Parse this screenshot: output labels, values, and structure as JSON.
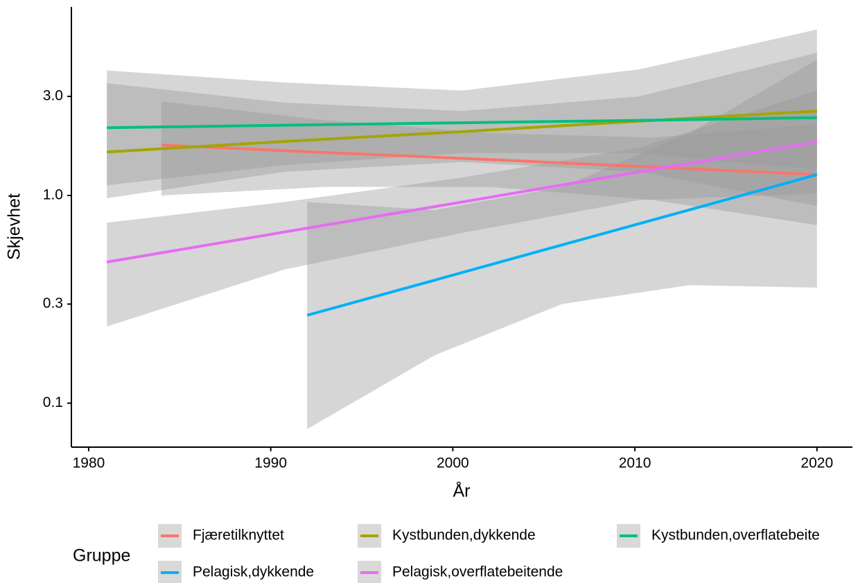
{
  "chart_data": {
    "type": "line",
    "log_y": true,
    "x_label": "År",
    "y_label": "Skjevhet",
    "legend_title": "Gruppe",
    "xlim": [
      1979.05,
      2021.95
    ],
    "xticks": [
      1980,
      1990,
      2000,
      2010,
      2020
    ],
    "ylim": [
      0.0614,
      8.09
    ],
    "yticks": [
      0.1,
      0.3,
      {
        "value": 1.0,
        "label": "1.0"
      },
      {
        "value": 3.0,
        "label": "3.0"
      }
    ],
    "ribbon_color": "#999999",
    "series": [
      {
        "name": "Fjæretilknyttet",
        "color": "#f8766d",
        "x": [
          1984,
          1993,
          2002,
          2011,
          2020
        ],
        "values": [
          1.75,
          1.61,
          1.49,
          1.37,
          1.26
        ],
        "lower": [
          1.0,
          1.1,
          1.1,
          0.95,
          0.72
        ],
        "upper": [
          2.84,
          2.3,
          2.0,
          1.9,
          2.2
        ]
      },
      {
        "name": "Kystbunden,dykkende",
        "color": "#a3a500",
        "x": [
          1981,
          1990.75,
          2000.5,
          2010.25,
          2020
        ],
        "values": [
          1.62,
          1.82,
          2.03,
          2.28,
          2.55
        ],
        "lower": [
          1.12,
          1.4,
          1.6,
          1.6,
          1.33
        ],
        "upper": [
          3.47,
          2.8,
          2.55,
          3.0,
          4.87
        ]
      },
      {
        "name": "Kystbunden,overflatebeite",
        "color": "#00bf7d",
        "x": [
          1981,
          1990.75,
          2000.5,
          2010.25,
          2020
        ],
        "values": [
          2.12,
          2.18,
          2.24,
          2.3,
          2.37
        ],
        "lower": [
          0.97,
          1.3,
          1.45,
          1.3,
          0.89
        ],
        "upper": [
          4.0,
          3.5,
          3.2,
          4.05,
          6.3
        ]
      },
      {
        "name": "Pelagisk,dykkende",
        "color": "#00b0f6",
        "x": [
          1992,
          1999,
          2006,
          2013,
          2020
        ],
        "values": [
          0.265,
          0.391,
          0.578,
          0.853,
          1.26
        ],
        "lower": [
          0.075,
          0.17,
          0.3,
          0.37,
          0.36
        ],
        "upper": [
          0.93,
          0.85,
          1.1,
          2.0,
          4.5
        ]
      },
      {
        "name": "Pelagisk,overflatebeitende",
        "color": "#e76bf3",
        "x": [
          1981,
          1990.75,
          2000.5,
          2010.25,
          2020
        ],
        "values": [
          0.478,
          0.667,
          0.93,
          1.3,
          1.81
        ],
        "lower": [
          0.234,
          0.44,
          0.66,
          0.95,
          1.02
        ],
        "upper": [
          0.74,
          0.93,
          1.22,
          1.7,
          3.2
        ]
      }
    ]
  }
}
